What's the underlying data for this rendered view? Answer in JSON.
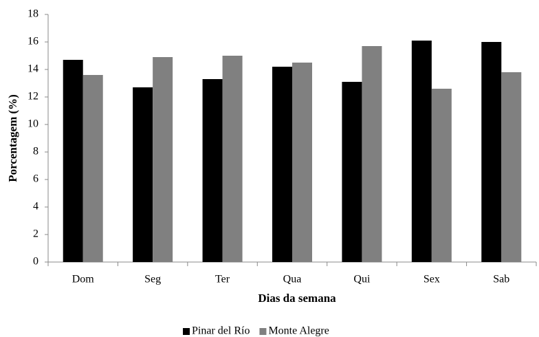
{
  "chart_data": {
    "type": "bar",
    "x_label": "Dias da semana",
    "y_label": "Porcentagem (%)",
    "categories": [
      "Dom",
      "Seg",
      "Ter",
      "Qua",
      "Qui",
      "Sex",
      "Sab"
    ],
    "series": [
      {
        "name": "Pinar del Río",
        "color": "#000000",
        "values": [
          14.7,
          12.7,
          13.3,
          14.2,
          13.1,
          16.1,
          16.0
        ]
      },
      {
        "name": "Monte Alegre",
        "color": "#808080",
        "values": [
          13.6,
          14.9,
          15.0,
          14.5,
          15.7,
          12.6,
          13.8
        ]
      }
    ],
    "ylim": [
      0,
      18
    ],
    "yticks": [
      0,
      2,
      4,
      6,
      8,
      10,
      12,
      14,
      16,
      18
    ],
    "grid": false,
    "legend": "bottom"
  }
}
